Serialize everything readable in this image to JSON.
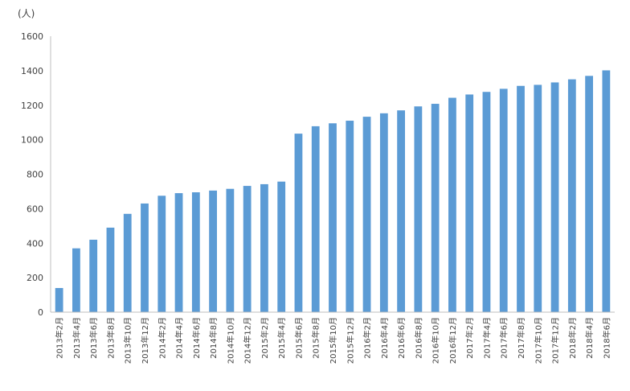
{
  "chart_data": {
    "type": "bar",
    "title": "",
    "xlabel": "",
    "ylabel": "",
    "y_unit": "(人)",
    "ylim": [
      0,
      1600
    ],
    "yticks": [
      0,
      200,
      400,
      600,
      800,
      1000,
      1200,
      1400,
      1600
    ],
    "grid": false,
    "legend": "none",
    "bar_color": "#5B9BD5",
    "axis_color": "#BFBFBF",
    "categories": [
      "2013年2月",
      "2013年4月",
      "2013年6月",
      "2013年8月",
      "2013年10月",
      "2013年12月",
      "2014年2月",
      "2014年4月",
      "2014年6月",
      "2014年8月",
      "2014年10月",
      "2014年12月",
      "2015年2月",
      "2015年4月",
      "2015年6月",
      "2015年8月",
      "2015年10月",
      "2015年12月",
      "2016年2月",
      "2016年4月",
      "2016年6月",
      "2016年8月",
      "2016年10月",
      "2016年12月",
      "2017年2月",
      "2017年4月",
      "2017年6月",
      "2017年8月",
      "2017年10月",
      "2017年12月",
      "2018年2月",
      "2018年4月",
      "2018年6月"
    ],
    "values": [
      140,
      370,
      420,
      490,
      570,
      630,
      675,
      690,
      695,
      705,
      715,
      732,
      742,
      757,
      1035,
      1078,
      1095,
      1110,
      1133,
      1153,
      1170,
      1193,
      1208,
      1243,
      1262,
      1277,
      1295,
      1312,
      1318,
      1332,
      1350,
      1370,
      1402
    ]
  }
}
